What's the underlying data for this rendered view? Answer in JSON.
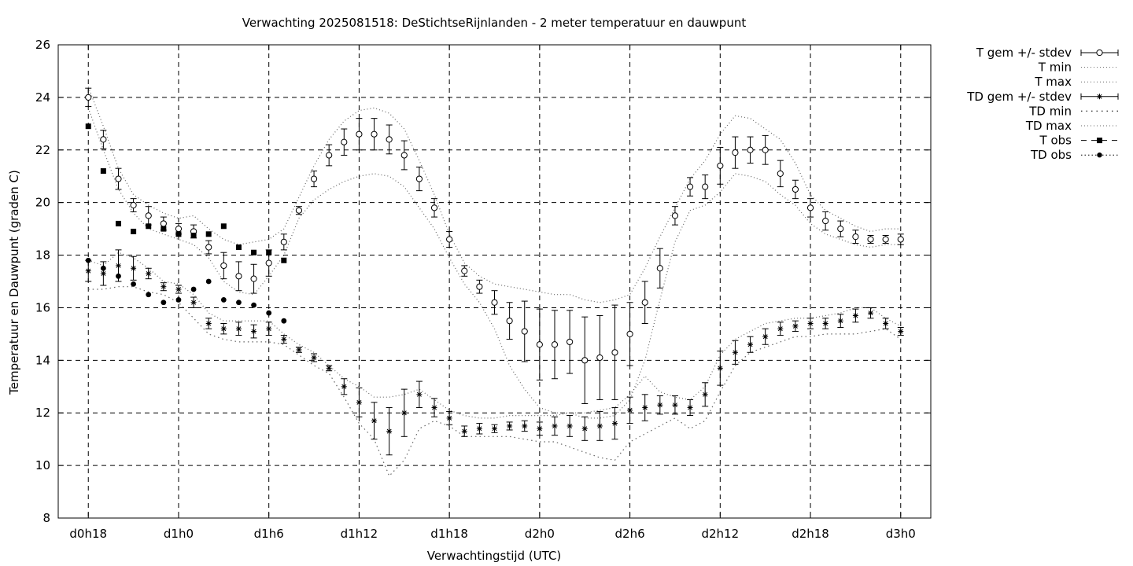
{
  "chart_data": {
    "type": "line",
    "title": "Verwachting 2025081518: DeStichtseRijnlanden - 2 meter temperatuur en dauwpunt",
    "xlabel": "Verwachtingstijd (UTC)",
    "ylabel": "Temperatuur en Dauwpunt (graden C)",
    "ylim": [
      8,
      26
    ],
    "yticks": [
      8,
      10,
      12,
      14,
      16,
      18,
      20,
      22,
      24,
      26
    ],
    "xlim_hours": [
      -2,
      56
    ],
    "x_unit": "hours from d0h18",
    "xticks": [
      {
        "x": 0,
        "label": "d0h18"
      },
      {
        "x": 6,
        "label": "d1h0"
      },
      {
        "x": 12,
        "label": "d1h6"
      },
      {
        "x": 18,
        "label": "d1h12"
      },
      {
        "x": 24,
        "label": "d1h18"
      },
      {
        "x": 30,
        "label": "d2h0"
      },
      {
        "x": 36,
        "label": "d2h6"
      },
      {
        "x": 42,
        "label": "d2h12"
      },
      {
        "x": 48,
        "label": "d2h18"
      },
      {
        "x": 54,
        "label": "d3h0"
      }
    ],
    "grid": true,
    "legend_position": "outside-top-right",
    "legend": [
      {
        "label": "T gem +/- stdev",
        "style": "errorbar-circle"
      },
      {
        "label": "T min",
        "style": "dotted"
      },
      {
        "label": "T max",
        "style": "dotted"
      },
      {
        "label": "TD gem +/- stdev",
        "style": "errorbar-star"
      },
      {
        "label": "TD min",
        "style": "dotted-sparse"
      },
      {
        "label": "TD max",
        "style": "dotted"
      },
      {
        "label": "T obs",
        "style": "dashed-square"
      },
      {
        "label": "TD obs",
        "style": "dotted-dot"
      }
    ],
    "series": [
      {
        "name": "T gem +/- stdev",
        "x": [
          0,
          1,
          2,
          3,
          4,
          5,
          6,
          7,
          8,
          9,
          10,
          11,
          12,
          13,
          14,
          15,
          16,
          17,
          18,
          19,
          20,
          21,
          22,
          23,
          24,
          25,
          26,
          27,
          28,
          29,
          30,
          31,
          32,
          33,
          34,
          35,
          36,
          37,
          38,
          39,
          40,
          41,
          42,
          43,
          44,
          45,
          46,
          47,
          48,
          49,
          50,
          51,
          52,
          53,
          54
        ],
        "mean": [
          24.0,
          22.4,
          20.9,
          19.9,
          19.5,
          19.2,
          19.0,
          18.9,
          18.3,
          17.6,
          17.2,
          17.1,
          17.7,
          18.5,
          19.7,
          20.9,
          21.8,
          22.3,
          22.6,
          22.6,
          22.4,
          21.8,
          20.9,
          19.8,
          18.6,
          17.4,
          16.8,
          16.2,
          15.5,
          15.1,
          14.6,
          14.6,
          14.7,
          14.0,
          14.1,
          14.3,
          15.0,
          16.2,
          17.5,
          19.5,
          20.6,
          20.6,
          21.4,
          21.9,
          22.0,
          22.0,
          21.1,
          20.5,
          19.8,
          19.3,
          19.0,
          18.7,
          18.6,
          18.6,
          18.6
        ],
        "stdev": [
          0.35,
          0.35,
          0.4,
          0.25,
          0.35,
          0.25,
          0.2,
          0.25,
          0.25,
          0.5,
          0.55,
          0.55,
          0.5,
          0.3,
          0.15,
          0.3,
          0.4,
          0.5,
          0.6,
          0.6,
          0.55,
          0.55,
          0.45,
          0.35,
          0.3,
          0.2,
          0.25,
          0.45,
          0.7,
          1.15,
          1.35,
          1.3,
          1.2,
          1.65,
          1.6,
          1.8,
          1.2,
          0.8,
          0.75,
          0.35,
          0.35,
          0.45,
          0.7,
          0.6,
          0.5,
          0.55,
          0.5,
          0.35,
          0.35,
          0.35,
          0.3,
          0.25,
          0.15,
          0.15,
          0.2
        ]
      },
      {
        "name": "T min",
        "x": [
          0,
          1,
          2,
          3,
          4,
          5,
          6,
          7,
          8,
          9,
          10,
          11,
          12,
          13,
          14,
          15,
          16,
          17,
          18,
          19,
          20,
          21,
          22,
          23,
          24,
          25,
          26,
          27,
          28,
          29,
          30,
          31,
          32,
          33,
          34,
          35,
          36,
          37,
          38,
          39,
          40,
          41,
          42,
          43,
          44,
          45,
          46,
          47,
          48,
          49,
          50,
          51,
          52,
          53,
          54
        ],
        "values": [
          23.6,
          22.0,
          20.5,
          19.6,
          19.0,
          18.8,
          18.6,
          18.4,
          17.9,
          17.0,
          16.6,
          16.5,
          17.2,
          18.0,
          19.4,
          20.1,
          20.5,
          20.8,
          21.0,
          21.1,
          21.0,
          20.6,
          19.8,
          19.0,
          17.9,
          16.9,
          16.2,
          15.2,
          13.8,
          12.9,
          12.2,
          12.0,
          12.0,
          11.8,
          11.8,
          11.9,
          12.5,
          14.0,
          16.3,
          18.5,
          19.7,
          19.9,
          20.4,
          21.1,
          21.0,
          20.8,
          20.3,
          19.9,
          19.2,
          18.8,
          18.6,
          18.4,
          18.3,
          18.4,
          18.4
        ]
      },
      {
        "name": "T max",
        "x": [
          0,
          1,
          2,
          3,
          4,
          5,
          6,
          7,
          8,
          9,
          10,
          11,
          12,
          13,
          14,
          15,
          16,
          17,
          18,
          19,
          20,
          21,
          22,
          23,
          24,
          25,
          26,
          27,
          28,
          29,
          30,
          31,
          32,
          33,
          34,
          35,
          36,
          37,
          38,
          39,
          40,
          41,
          42,
          43,
          44,
          45,
          46,
          47,
          48,
          49,
          50,
          51,
          52,
          53,
          54
        ],
        "values": [
          24.4,
          22.9,
          21.3,
          20.3,
          19.9,
          19.6,
          19.4,
          19.5,
          19.0,
          18.6,
          18.4,
          18.5,
          18.6,
          19.0,
          20.2,
          21.4,
          22.4,
          23.1,
          23.5,
          23.6,
          23.4,
          22.8,
          21.6,
          20.3,
          18.8,
          17.7,
          17.2,
          16.9,
          16.8,
          16.7,
          16.6,
          16.5,
          16.5,
          16.3,
          16.2,
          16.3,
          16.5,
          17.5,
          18.7,
          19.8,
          20.9,
          21.6,
          22.6,
          23.3,
          23.2,
          22.8,
          22.4,
          21.5,
          20.3,
          19.7,
          19.4,
          19.1,
          18.9,
          19.0,
          19.0
        ]
      },
      {
        "name": "TD gem +/- stdev",
        "x": [
          0,
          1,
          2,
          3,
          4,
          5,
          6,
          7,
          8,
          9,
          10,
          11,
          12,
          13,
          14,
          15,
          16,
          17,
          18,
          19,
          20,
          21,
          22,
          23,
          24,
          25,
          26,
          27,
          28,
          29,
          30,
          31,
          32,
          33,
          34,
          35,
          36,
          37,
          38,
          39,
          40,
          41,
          42,
          43,
          44,
          45,
          46,
          47,
          48,
          49,
          50,
          51,
          52,
          53,
          54
        ],
        "mean": [
          17.4,
          17.3,
          17.6,
          17.5,
          17.3,
          16.8,
          16.7,
          16.2,
          15.4,
          15.2,
          15.2,
          15.1,
          15.2,
          14.8,
          14.4,
          14.1,
          13.7,
          13.0,
          12.4,
          11.7,
          11.3,
          12.0,
          12.7,
          12.2,
          11.8,
          11.3,
          11.4,
          11.4,
          11.5,
          11.5,
          11.4,
          11.5,
          11.5,
          11.4,
          11.5,
          11.6,
          12.1,
          12.2,
          12.3,
          12.3,
          12.2,
          12.7,
          13.7,
          14.3,
          14.6,
          14.9,
          15.2,
          15.3,
          15.4,
          15.4,
          15.5,
          15.7,
          15.8,
          15.4,
          15.1
        ],
        "stdev": [
          0.4,
          0.45,
          0.6,
          0.45,
          0.2,
          0.15,
          0.15,
          0.2,
          0.2,
          0.2,
          0.25,
          0.25,
          0.25,
          0.15,
          0.1,
          0.15,
          0.1,
          0.3,
          0.55,
          0.7,
          0.9,
          0.9,
          0.5,
          0.35,
          0.25,
          0.2,
          0.2,
          0.15,
          0.15,
          0.2,
          0.25,
          0.35,
          0.4,
          0.45,
          0.55,
          0.6,
          0.5,
          0.5,
          0.35,
          0.35,
          0.3,
          0.45,
          0.65,
          0.45,
          0.3,
          0.3,
          0.25,
          0.2,
          0.2,
          0.2,
          0.25,
          0.25,
          0.2,
          0.2,
          0.15
        ]
      },
      {
        "name": "TD min",
        "x": [
          0,
          1,
          2,
          3,
          4,
          5,
          6,
          7,
          8,
          9,
          10,
          11,
          12,
          13,
          14,
          15,
          16,
          17,
          18,
          19,
          20,
          21,
          22,
          23,
          24,
          25,
          26,
          27,
          28,
          29,
          30,
          31,
          32,
          33,
          34,
          35,
          36,
          37,
          38,
          39,
          40,
          41,
          42,
          43,
          44,
          45,
          46,
          47,
          48,
          49,
          50,
          51,
          52,
          53,
          54
        ],
        "values": [
          16.7,
          16.7,
          16.8,
          16.8,
          16.6,
          16.5,
          16.2,
          15.6,
          15.0,
          14.8,
          14.7,
          14.7,
          14.7,
          14.6,
          14.2,
          13.8,
          13.5,
          12.6,
          11.6,
          11.0,
          9.6,
          10.2,
          11.4,
          11.7,
          11.5,
          11.1,
          11.1,
          11.1,
          11.1,
          11.0,
          10.9,
          10.9,
          10.7,
          10.5,
          10.3,
          10.2,
          10.9,
          11.2,
          11.5,
          11.8,
          11.4,
          11.7,
          12.8,
          13.8,
          14.3,
          14.5,
          14.7,
          14.9,
          14.9,
          15.0,
          15.0,
          15.0,
          15.1,
          15.2,
          14.8
        ]
      },
      {
        "name": "TD max",
        "x": [
          0,
          1,
          2,
          3,
          4,
          5,
          6,
          7,
          8,
          9,
          10,
          11,
          12,
          13,
          14,
          15,
          16,
          17,
          18,
          19,
          20,
          21,
          22,
          23,
          24,
          25,
          26,
          27,
          28,
          29,
          30,
          31,
          32,
          33,
          34,
          35,
          36,
          37,
          38,
          39,
          40,
          41,
          42,
          43,
          44,
          45,
          46,
          47,
          48,
          49,
          50,
          51,
          52,
          53,
          54
        ],
        "values": [
          17.8,
          17.6,
          18.1,
          17.9,
          17.5,
          17.0,
          16.9,
          16.5,
          15.8,
          15.5,
          15.5,
          15.5,
          15.5,
          15.0,
          14.6,
          14.3,
          13.8,
          13.3,
          13.0,
          12.6,
          12.6,
          12.7,
          12.9,
          12.5,
          12.1,
          11.9,
          11.8,
          11.8,
          11.9,
          11.9,
          11.9,
          11.9,
          12.0,
          12.0,
          12.1,
          12.2,
          12.7,
          13.4,
          12.8,
          12.6,
          12.5,
          13.0,
          14.2,
          14.8,
          15.1,
          15.4,
          15.5,
          15.6,
          15.6,
          15.7,
          15.8,
          16.0,
          16.0,
          15.6,
          15.3
        ]
      },
      {
        "name": "T obs",
        "x": [
          0,
          1,
          2,
          3,
          4,
          5,
          6,
          7,
          8,
          9,
          10,
          11,
          12,
          13
        ],
        "values": [
          22.9,
          21.2,
          19.2,
          18.9,
          19.1,
          19.0,
          18.8,
          18.75,
          18.8,
          19.1,
          18.3,
          18.1,
          18.1,
          17.8
        ]
      },
      {
        "name": "TD obs",
        "x": [
          0,
          1,
          2,
          3,
          4,
          5,
          6,
          7,
          8,
          9,
          10,
          11,
          12,
          13
        ],
        "values": [
          17.8,
          17.5,
          17.2,
          16.9,
          16.5,
          16.2,
          16.3,
          16.7,
          17.0,
          16.3,
          16.2,
          16.1,
          15.8,
          15.5
        ]
      }
    ]
  }
}
